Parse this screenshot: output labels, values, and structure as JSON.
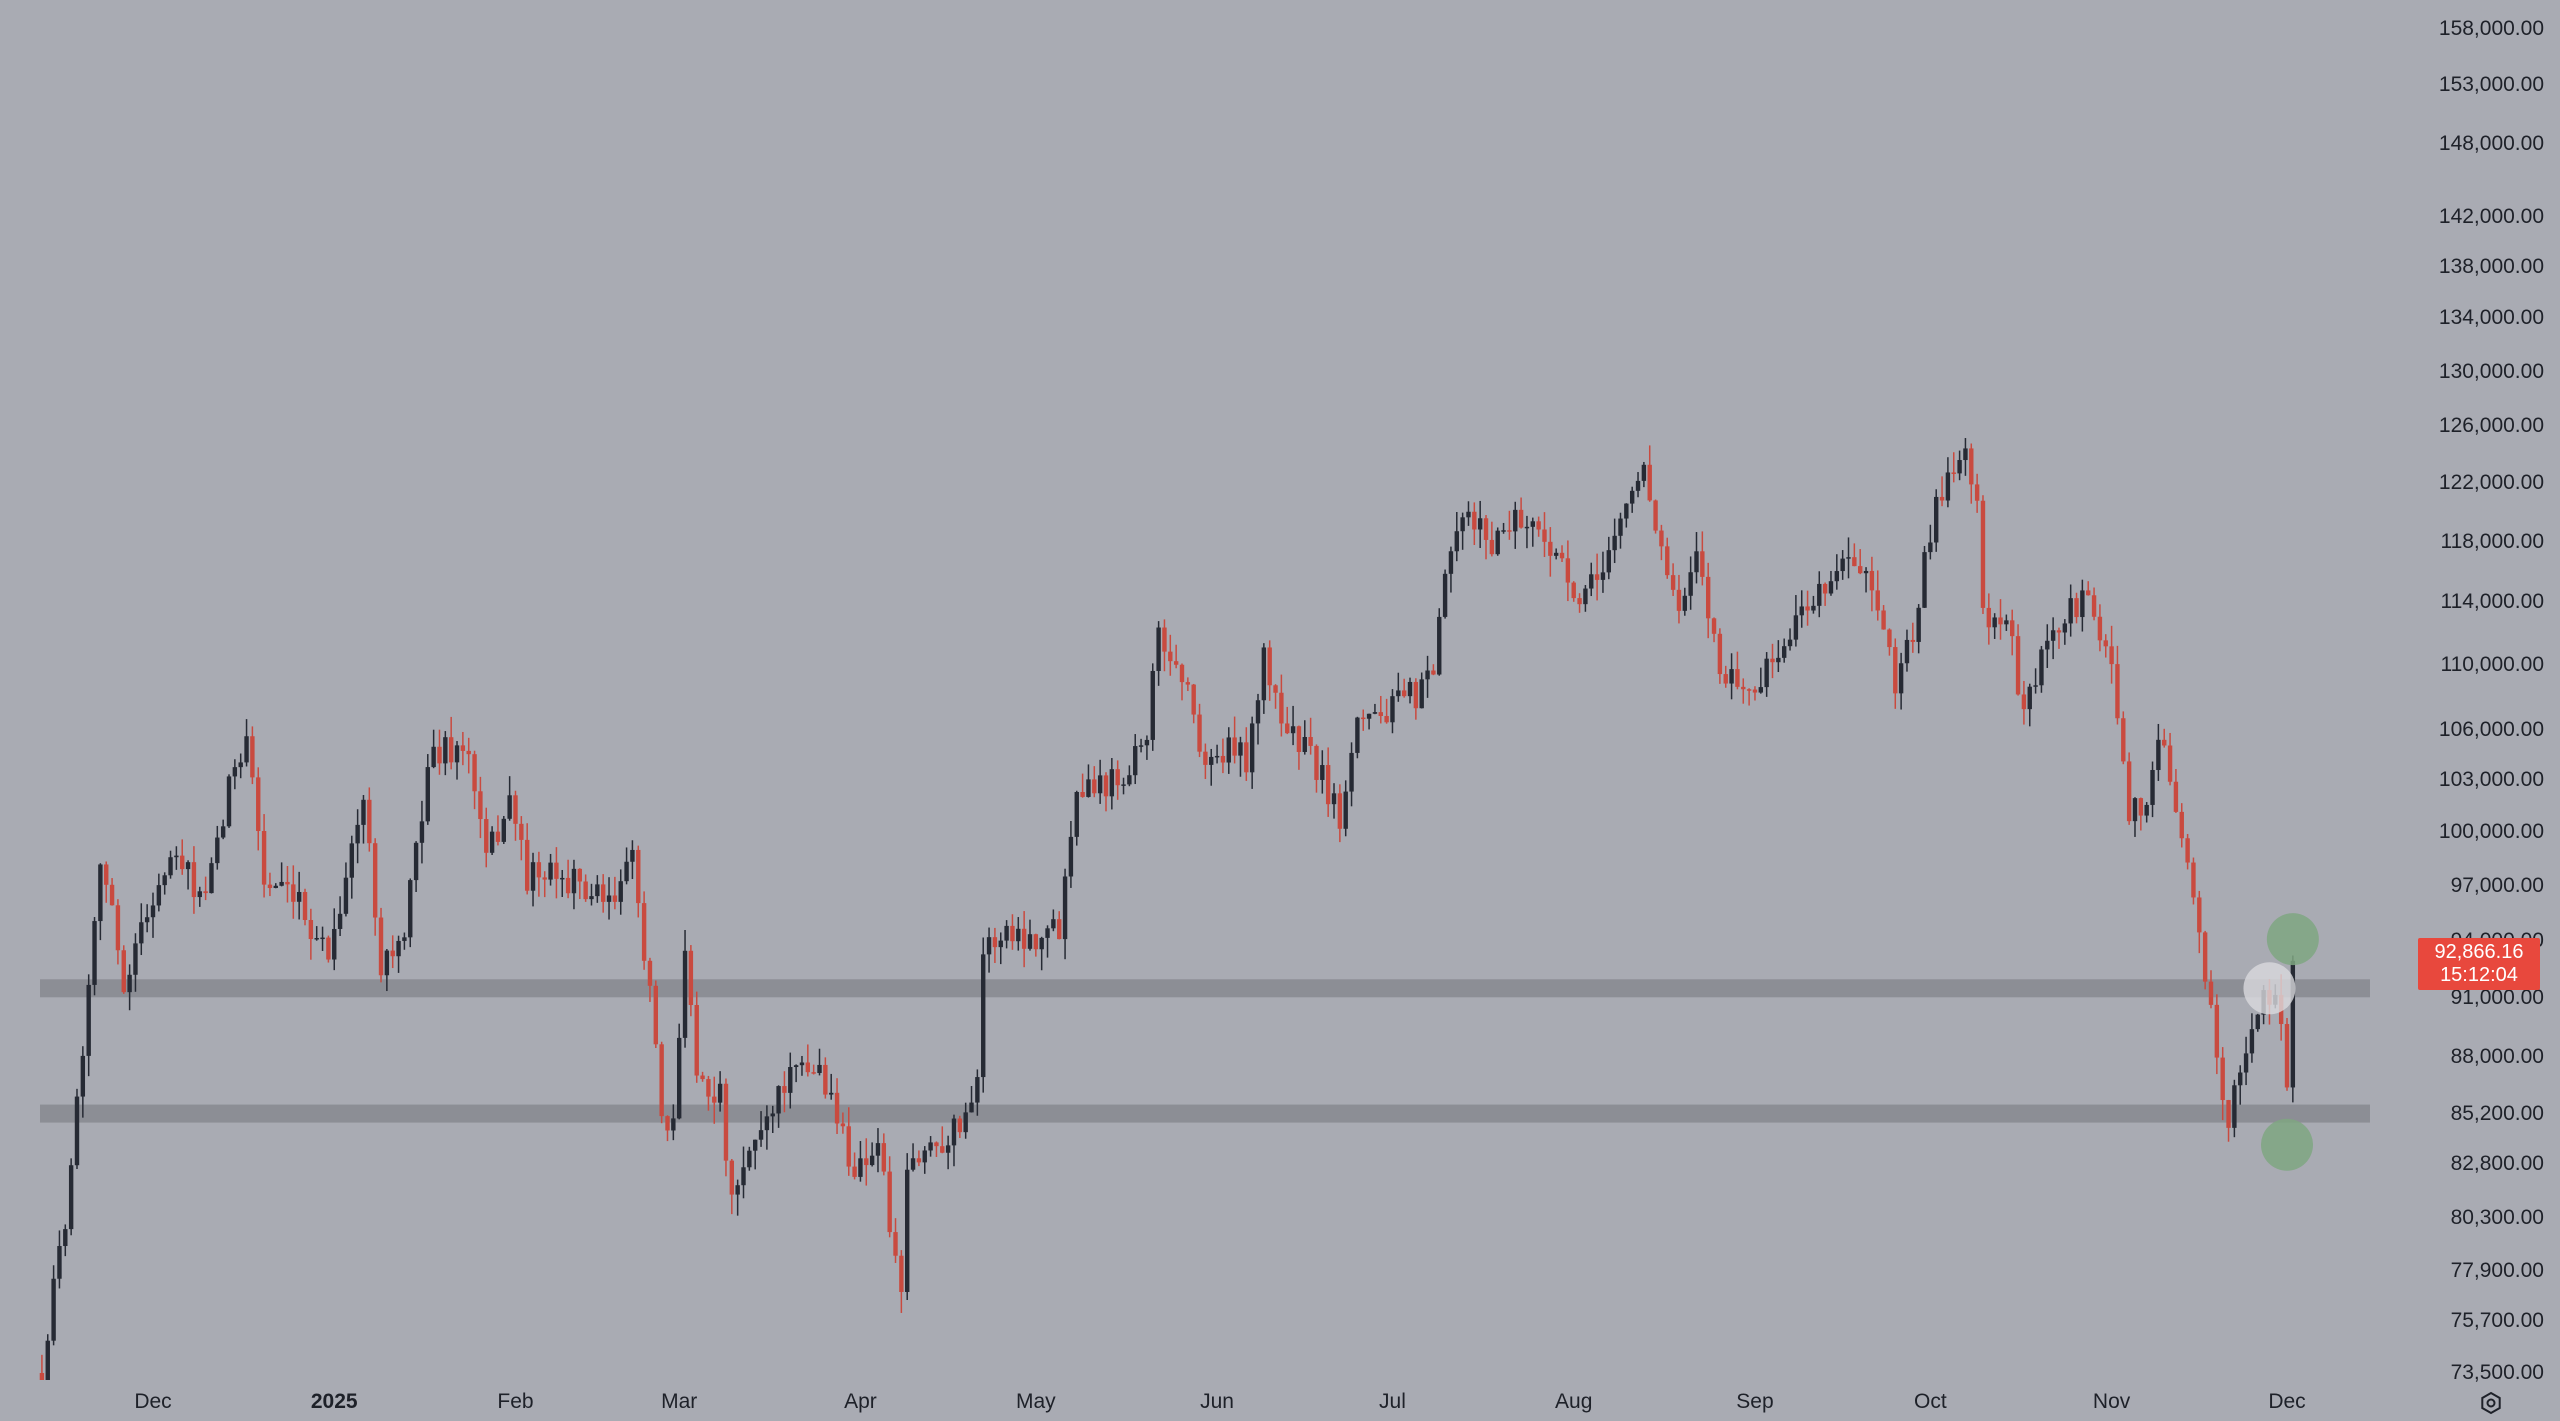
{
  "colors": {
    "background": "#a9abb3",
    "up_candle": "#262a34",
    "down_candle": "#c94a3f",
    "zone_band": "#8c8e95",
    "price_tag": "#e8483d",
    "marker_green": "#7fa681",
    "marker_white": "#d9dadd"
  },
  "price_axis": {
    "labels": [
      "158,000.00",
      "153,000.00",
      "148,000.00",
      "142,000.00",
      "138,000.00",
      "134,000.00",
      "130,000.00",
      "126,000.00",
      "122,000.00",
      "118,000.00",
      "114,000.00",
      "110,000.00",
      "106,000.00",
      "103,000.00",
      "100,000.00",
      "97,000.00",
      "94,000.00",
      "91,000.00",
      "88,000.00",
      "85,200.00",
      "82,800.00",
      "80,300.00",
      "77,900.00",
      "75,700.00",
      "73,500.00"
    ],
    "values": [
      158000,
      153000,
      148000,
      142000,
      138000,
      134000,
      130000,
      126000,
      122000,
      118000,
      114000,
      110000,
      106000,
      103000,
      100000,
      97000,
      94000,
      91000,
      88000,
      85200,
      82800,
      80300,
      77900,
      75700,
      73500
    ],
    "scale": "log"
  },
  "time_axis": {
    "labels": [
      {
        "text": "Dec",
        "bold": false
      },
      {
        "text": "2025",
        "bold": true
      },
      {
        "text": "Feb",
        "bold": false
      },
      {
        "text": "Mar",
        "bold": false
      },
      {
        "text": "Apr",
        "bold": false
      },
      {
        "text": "May",
        "bold": false
      },
      {
        "text": "Jun",
        "bold": false
      },
      {
        "text": "Jul",
        "bold": false
      },
      {
        "text": "Aug",
        "bold": false
      },
      {
        "text": "Sep",
        "bold": false
      },
      {
        "text": "Oct",
        "bold": false
      },
      {
        "text": "Nov",
        "bold": false
      },
      {
        "text": "Dec",
        "bold": false
      }
    ]
  },
  "current_price": {
    "price": "92,866.16",
    "countdown": "15:12:04",
    "value": 92866.16
  },
  "settings_icon": "gear-icon",
  "chart_data": {
    "type": "candlestick",
    "title": "",
    "xlabel": "",
    "ylabel": "",
    "ylim": [
      73500,
      158000
    ],
    "x_range": [
      "2024-11-12",
      "2025-12-15"
    ],
    "grid": false,
    "support_zones": [
      91500,
      85200
    ],
    "markers": [
      {
        "kind": "green-circle",
        "date": "2025-12-02",
        "price": 94100
      },
      {
        "kind": "green-circle",
        "date": "2025-12-01",
        "price": 83700
      },
      {
        "kind": "white-circle",
        "date": "2025-11-28",
        "price": 91500
      }
    ],
    "anchors": [
      [
        "2024-11-12",
        73500
      ],
      [
        "2024-11-16",
        80500
      ],
      [
        "2024-11-19",
        88500
      ],
      [
        "2024-11-22",
        98900
      ],
      [
        "2024-11-26",
        91800
      ],
      [
        "2024-12-01",
        96500
      ],
      [
        "2024-12-05",
        98500
      ],
      [
        "2024-12-10",
        96000
      ],
      [
        "2024-12-15",
        104000
      ],
      [
        "2024-12-17",
        106000
      ],
      [
        "2024-12-20",
        97200
      ],
      [
        "2024-12-26",
        95800
      ],
      [
        "2024-12-31",
        93400
      ],
      [
        "2025-01-06",
        101800
      ],
      [
        "2025-01-09",
        93000
      ],
      [
        "2025-01-13",
        94000
      ],
      [
        "2025-01-17",
        104000
      ],
      [
        "2025-01-20",
        105000
      ],
      [
        "2025-01-24",
        104500
      ],
      [
        "2025-01-27",
        98300
      ],
      [
        "2025-01-31",
        102000
      ],
      [
        "2025-02-03",
        97500
      ],
      [
        "2025-02-10",
        97400
      ],
      [
        "2025-02-17",
        95800
      ],
      [
        "2025-02-21",
        98300
      ],
      [
        "2025-02-24",
        91500
      ],
      [
        "2025-02-26",
        84500
      ],
      [
        "2025-02-28",
        84300
      ],
      [
        "2025-03-02",
        94200
      ],
      [
        "2025-03-04",
        87200
      ],
      [
        "2025-03-08",
        86000
      ],
      [
        "2025-03-10",
        80700
      ],
      [
        "2025-03-14",
        84000
      ],
      [
        "2025-03-19",
        86800
      ],
      [
        "2025-03-25",
        87500
      ],
      [
        "2025-03-31",
        82500
      ],
      [
        "2025-04-04",
        83800
      ],
      [
        "2025-04-08",
        76300
      ],
      [
        "2025-04-09",
        82400
      ],
      [
        "2025-04-13",
        83700
      ],
      [
        "2025-04-18",
        84600
      ],
      [
        "2025-04-21",
        87300
      ],
      [
        "2025-04-22",
        93400
      ],
      [
        "2025-04-26",
        94600
      ],
      [
        "2025-04-30",
        94200
      ],
      [
        "2025-05-05",
        94800
      ],
      [
        "2025-05-08",
        103000
      ],
      [
        "2025-05-12",
        102800
      ],
      [
        "2025-05-16",
        103500
      ],
      [
        "2025-05-20",
        106000
      ],
      [
        "2025-05-22",
        111700
      ],
      [
        "2025-05-26",
        109500
      ],
      [
        "2025-05-30",
        104000
      ],
      [
        "2025-06-04",
        104800
      ],
      [
        "2025-06-06",
        104300
      ],
      [
        "2025-06-09",
        110200
      ],
      [
        "2025-06-13",
        106000
      ],
      [
        "2025-06-17",
        104500
      ],
      [
        "2025-06-22",
        100900
      ],
      [
        "2025-06-25",
        107300
      ],
      [
        "2025-06-30",
        107000
      ],
      [
        "2025-07-04",
        108000
      ],
      [
        "2025-07-08",
        108900
      ],
      [
        "2025-07-10",
        116000
      ],
      [
        "2025-07-14",
        119800
      ],
      [
        "2025-07-18",
        117900
      ],
      [
        "2025-07-22",
        119900
      ],
      [
        "2025-07-28",
        118000
      ],
      [
        "2025-08-02",
        113300
      ],
      [
        "2025-08-07",
        117400
      ],
      [
        "2025-08-13",
        123300
      ],
      [
        "2025-08-16",
        117400
      ],
      [
        "2025-08-19",
        112900
      ],
      [
        "2025-08-22",
        116800
      ],
      [
        "2025-08-26",
        110000
      ],
      [
        "2025-08-31",
        108200
      ],
      [
        "2025-09-05",
        110700
      ],
      [
        "2025-09-10",
        113900
      ],
      [
        "2025-09-16",
        116700
      ],
      [
        "2025-09-20",
        115600
      ],
      [
        "2025-09-25",
        109000
      ],
      [
        "2025-09-28",
        112100
      ],
      [
        "2025-10-02",
        120500
      ],
      [
        "2025-10-06",
        124500
      ],
      [
        "2025-10-09",
        121600
      ],
      [
        "2025-10-10",
        113000
      ],
      [
        "2025-10-14",
        113000
      ],
      [
        "2025-10-17",
        106500
      ],
      [
        "2025-10-20",
        110600
      ],
      [
        "2025-10-27",
        114500
      ],
      [
        "2025-11-01",
        110000
      ],
      [
        "2025-11-04",
        101500
      ],
      [
        "2025-11-06",
        101000
      ],
      [
        "2025-11-10",
        105800
      ],
      [
        "2025-11-13",
        99500
      ],
      [
        "2025-11-17",
        92000
      ],
      [
        "2025-11-21",
        84800
      ],
      [
        "2025-11-24",
        88300
      ],
      [
        "2025-11-27",
        91300
      ],
      [
        "2025-11-30",
        90400
      ],
      [
        "2025-12-01",
        86300
      ],
      [
        "2025-12-02",
        92866
      ]
    ]
  }
}
